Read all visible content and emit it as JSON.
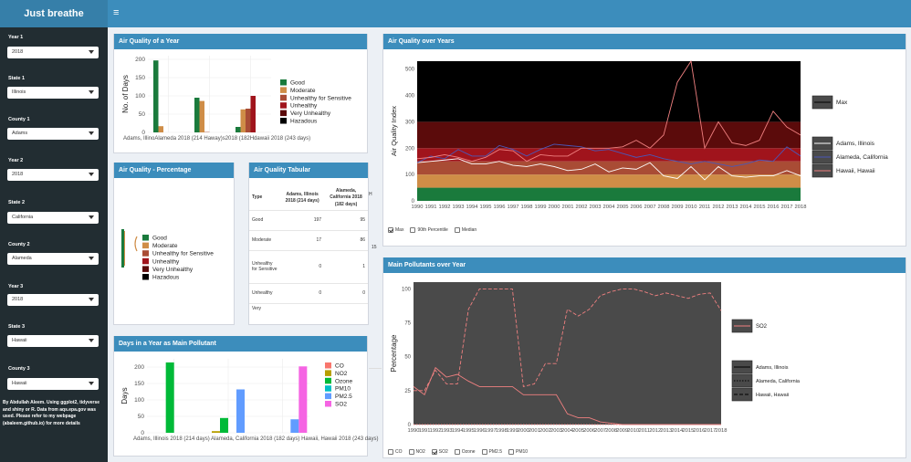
{
  "app": {
    "brand": "Just breathe",
    "menu_icon": "≡"
  },
  "sidebar": {
    "fields": [
      {
        "label": "Year 1",
        "value": "2018"
      },
      {
        "label": "State 1",
        "value": "Illinois"
      },
      {
        "label": "County 1",
        "value": "Adams"
      },
      {
        "label": "Year 2",
        "value": "2018"
      },
      {
        "label": "State 2",
        "value": "California"
      },
      {
        "label": "County 2",
        "value": "Alameda"
      },
      {
        "label": "Year 3",
        "value": "2018"
      },
      {
        "label": "State 3",
        "value": "Hawaii"
      },
      {
        "label": "County 3",
        "value": "Hawaii"
      }
    ],
    "note": "By Abdullah Aleem. Using ggplot2, tidyverse and shiny or R. Data from aqs.epa.gov was used. Please refer to my webpage (abaleem.github.io) for more details"
  },
  "colors": {
    "good": "#1a7a3c",
    "moderate": "#cf8d47",
    "sensitive": "#a94c35",
    "unhealthy": "#a0141c",
    "very_unhealthy": "#5b0b0b",
    "hazardous": "#000000",
    "header": "#3c8dbc",
    "sidebar": "#222d32"
  },
  "panels": {
    "aq_year": {
      "title": "Air Quality of a Year",
      "chart_data": {
        "type": "bar",
        "ylabel": "No. of Days",
        "ylim": [
          0,
          210
        ],
        "yticks": [
          0,
          50,
          100,
          150,
          200
        ],
        "categories": [
          "Adams, Illinois 2018 (214 days)",
          "Alameda, California 2018 (182 days)",
          "Hawaii, Hawaii 2018 (243 days)"
        ],
        "xlabel_overlap": "Adams, IllinoAlameda 2018 (214 Haway)s2018 (182Hdawaii 2018 (243 days)",
        "series": [
          {
            "name": "Good",
            "values": [
              197,
              95,
              15
            ]
          },
          {
            "name": "Moderate",
            "values": [
              17,
              86,
              63
            ]
          },
          {
            "name": "Unhealthy for Sensitive",
            "values": [
              0,
              1,
              65
            ]
          },
          {
            "name": "Unhealthy",
            "values": [
              0,
              0,
              100
            ]
          },
          {
            "name": "Very Unhealthy",
            "values": [
              0,
              0,
              0
            ]
          },
          {
            "name": "Hazadous",
            "values": [
              0,
              0,
              0
            ]
          }
        ]
      }
    },
    "aq_percentage": {
      "title": "Air Quality - Percentage",
      "legend": [
        "Good",
        "Moderate",
        "Unhealthy for Sensitive",
        "Unhealthy",
        "Very Unhealthy",
        "Hazadous"
      ],
      "chart_data": {
        "type": "pie",
        "note": "three small stacked pies clipped at left edge"
      }
    },
    "aq_tabular": {
      "title": "Air Quality Tabular",
      "columns": [
        "Type",
        "Adams, Illinois 2018 (214 days)",
        "Alameda, California 2018 (182 days)",
        "H"
      ],
      "rows": [
        {
          "type": "Good",
          "v1": "197",
          "v2": "95",
          "v3": "15"
        },
        {
          "type": "Moderate",
          "v1": "17",
          "v2": "86",
          "v3": ""
        },
        {
          "type": "Unhealthy for Sensitive",
          "v1": "0",
          "v2": "1",
          "v3": ""
        },
        {
          "type": "Unhealthy",
          "v1": "0",
          "v2": "0",
          "v3": ""
        },
        {
          "type": "Very",
          "v1": "",
          "v2": "",
          "v3": ""
        }
      ]
    },
    "main_pollutant": {
      "title": "Days in a Year as Main Pollutant",
      "chart_data": {
        "type": "bar",
        "ylabel": "Days",
        "ylim": [
          0,
          225
        ],
        "yticks": [
          0,
          50,
          100,
          150,
          200
        ],
        "xlabel_overlap": "Adams, Illinois 2018 (214 days) Alameda, California 2018 (182 days) Hawaii, Hawaii 2018 (243 days)",
        "categories": [
          "Adams",
          "Alameda",
          "Hawaii"
        ],
        "series": [
          {
            "name": "CO",
            "color": "#f8766d",
            "values": [
              0,
              0,
              0
            ]
          },
          {
            "name": "NO2",
            "color": "#b79f00",
            "values": [
              0,
              5,
              0
            ]
          },
          {
            "name": "Ozone",
            "color": "#00ba38",
            "values": [
              214,
              45,
              0
            ]
          },
          {
            "name": "PM10",
            "color": "#00bfc4",
            "values": [
              0,
              0,
              0
            ]
          },
          {
            "name": "PM2.5",
            "color": "#619cff",
            "values": [
              0,
              132,
              41
            ]
          },
          {
            "name": "SO2",
            "color": "#f564e3",
            "values": [
              0,
              0,
              202
            ]
          }
        ]
      }
    },
    "aq_years": {
      "title": "Air Quality over Years",
      "chart_data": {
        "type": "line",
        "ylabel": "Air Quality Index",
        "ylim": [
          0,
          530
        ],
        "yticks": [
          0,
          100,
          200,
          300,
          400,
          500
        ],
        "x": [
          1990,
          1991,
          1992,
          1993,
          1994,
          1995,
          1996,
          1997,
          1998,
          1999,
          2000,
          2001,
          2002,
          2003,
          2004,
          2005,
          2006,
          2007,
          2008,
          2009,
          2010,
          2011,
          2012,
          2013,
          2014,
          2015,
          2016,
          2017,
          2018
        ],
        "bands": [
          0,
          50,
          100,
          150,
          200,
          300,
          530
        ],
        "series": [
          {
            "name": "Adams, Illinois",
            "color": "#ffffff",
            "values": [
              145,
              150,
              155,
              160,
              140,
              140,
              150,
              135,
              130,
              140,
              130,
              115,
              120,
              140,
              110,
              125,
              120,
              145,
              95,
              85,
              130,
              80,
              130,
              95,
              90,
              95,
              95,
              115,
              95
            ]
          },
          {
            "name": "Alameda, California",
            "color": "#4a57b8",
            "values": [
              145,
              170,
              160,
              195,
              170,
              170,
              210,
              195,
              170,
              195,
              215,
              210,
              205,
              190,
              195,
              180,
              165,
              175,
              160,
              150,
              140,
              150,
              140,
              130,
              140,
              155,
              150,
              205,
              170
            ]
          },
          {
            "name": "Hawaii, Hawaii",
            "color": "#f08080",
            "values": [
              160,
              165,
              175,
              165,
              150,
              165,
              195,
              190,
              150,
              175,
              170,
              170,
              200,
              200,
              200,
              205,
              230,
              200,
              250,
              450,
              530,
              200,
              300,
              220,
              210,
              230,
              340,
              280,
              250
            ]
          }
        ]
      },
      "legend_stat": "Max",
      "legend_series": [
        "Adams, Illinois",
        "Alameda, California",
        "Hawaii, Hawaii"
      ],
      "checkboxes": [
        {
          "label": "Max",
          "checked": true
        },
        {
          "label": "90th Percentile",
          "checked": false
        },
        {
          "label": "Median",
          "checked": false
        }
      ]
    },
    "pollutants": {
      "title": "Main Pollutants over Year",
      "chart_data": {
        "type": "line",
        "ylabel": "Percentage",
        "ylim": [
          0,
          105
        ],
        "yticks": [
          0,
          25,
          50,
          75,
          100
        ],
        "x": [
          1990,
          1991,
          1992,
          1993,
          1994,
          1995,
          1996,
          1997,
          1998,
          1999,
          2000,
          2001,
          2002,
          2003,
          2004,
          2005,
          2006,
          2007,
          2008,
          2009,
          2010,
          2011,
          2012,
          2013,
          2014,
          2015,
          2016,
          2017,
          2018
        ],
        "series": [
          {
            "name": "Adams, Illinois",
            "dash": "none",
            "values": [
              28,
              22,
              42,
              35,
              37,
              32,
              28,
              28,
              28,
              28,
              22,
              22,
              22,
              22,
              8,
              5,
              5,
              2,
              1,
              0,
              0,
              0,
              0,
              0,
              0,
              0,
              0,
              0,
              0
            ]
          },
          {
            "name": "Alameda, California",
            "dash": "1.5,1.5",
            "values": [
              0,
              0,
              0,
              0,
              0,
              0,
              0,
              0,
              0,
              0,
              0,
              0,
              0,
              0,
              0,
              0,
              0,
              0,
              0,
              0,
              0,
              0,
              0,
              0,
              0,
              0,
              0,
              0,
              0
            ]
          },
          {
            "name": "Hawaii, Hawaii",
            "dash": "4,2",
            "values": [
              25,
              25,
              40,
              30,
              30,
              85,
              100,
              100,
              100,
              100,
              28,
              30,
              45,
              45,
              85,
              80,
              85,
              95,
              98,
              100,
              100,
              98,
              95,
              97,
              95,
              93,
              96,
              97,
              84
            ]
          }
        ]
      },
      "legend_pollutant": "SO2",
      "legend_series": [
        "Adams, Illinois",
        "Alameda, California",
        "Hawaii, Hawaii"
      ],
      "checkboxes": [
        {
          "label": "CO",
          "checked": false
        },
        {
          "label": "NO2",
          "checked": false
        },
        {
          "label": "SO2",
          "checked": true
        },
        {
          "label": "Ozone",
          "checked": false
        },
        {
          "label": "PM2.5",
          "checked": false
        },
        {
          "label": "PM10",
          "checked": false
        }
      ]
    }
  }
}
